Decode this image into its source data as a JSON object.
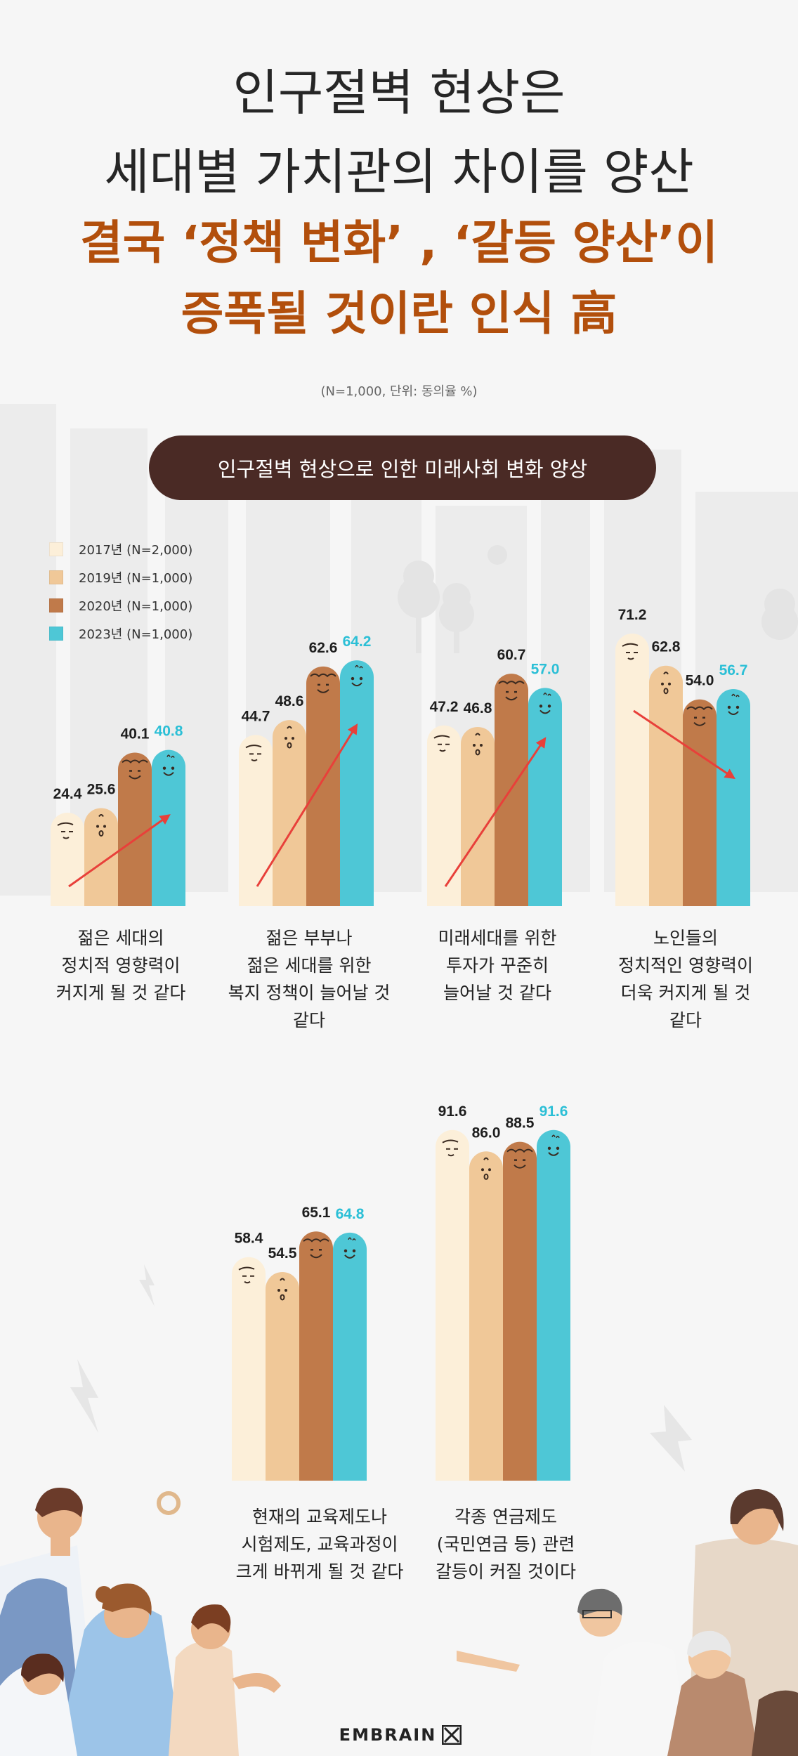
{
  "header": {
    "line1": "인구절벽 현상은",
    "line2": "세대별 가치관의 차이를 양산",
    "line3": "결국 ‘정책 변화’ , ‘갈등 양산’이",
    "line4": "증폭될 것이란 인식 高",
    "note": "(N=1,000, 단위: 동의율 %)"
  },
  "section_title": "인구절벽 현상으로 인한 미래사회 변화 양상",
  "brand": "EMBRAIN",
  "colors": {
    "y2017": "#fcefd9",
    "y2019": "#f0c898",
    "y2020": "#c07a4a",
    "y2023": "#4ec7d6",
    "highlight_text": "#2bbfd6",
    "trend_arrow": "#e8403a",
    "pill_bg": "#4a2a25",
    "title_accent": "#b24f0c"
  },
  "chart_data": {
    "type": "bar",
    "title": "인구절벽 현상으로 인한 미래사회 변화 양상",
    "ylabel": "동의율 (%)",
    "ylim": [
      0,
      100
    ],
    "legend_position": "top-left",
    "series": [
      {
        "name": "2017년 (N=2,000)",
        "values": [
          24.4,
          44.7,
          47.2,
          71.2,
          58.4,
          91.6
        ]
      },
      {
        "name": "2019년 (N=1,000)",
        "values": [
          25.6,
          48.6,
          46.8,
          62.8,
          54.5,
          86.0
        ]
      },
      {
        "name": "2020년 (N=1,000)",
        "values": [
          40.1,
          62.6,
          60.7,
          54.0,
          65.1,
          88.5
        ]
      },
      {
        "name": "2023년 (N=1,000)",
        "values": [
          40.8,
          64.2,
          57.0,
          56.7,
          64.8,
          91.6
        ]
      }
    ],
    "categories": [
      "젊은 세대의\n정치적 영향력이\n커지게 될 것 같다",
      "젊은 부부나\n젊은 세대를 위한\n복지 정책이 늘어날 것\n같다",
      "미래세대를 위한\n투자가 꾸준히\n늘어날 것 같다",
      "노인들의\n정치적인 영향력이\n더욱 커지게 될 것\n같다",
      "현재의 교육제도나\n시험제도, 교육과정이\n크게 바뀌게 될 것 같다",
      "각종 연금제도\n(국민연금 등) 관련\n갈등이 커질 것이다"
    ],
    "trends": [
      "up",
      "up",
      "up",
      "down",
      "none",
      "none"
    ]
  }
}
